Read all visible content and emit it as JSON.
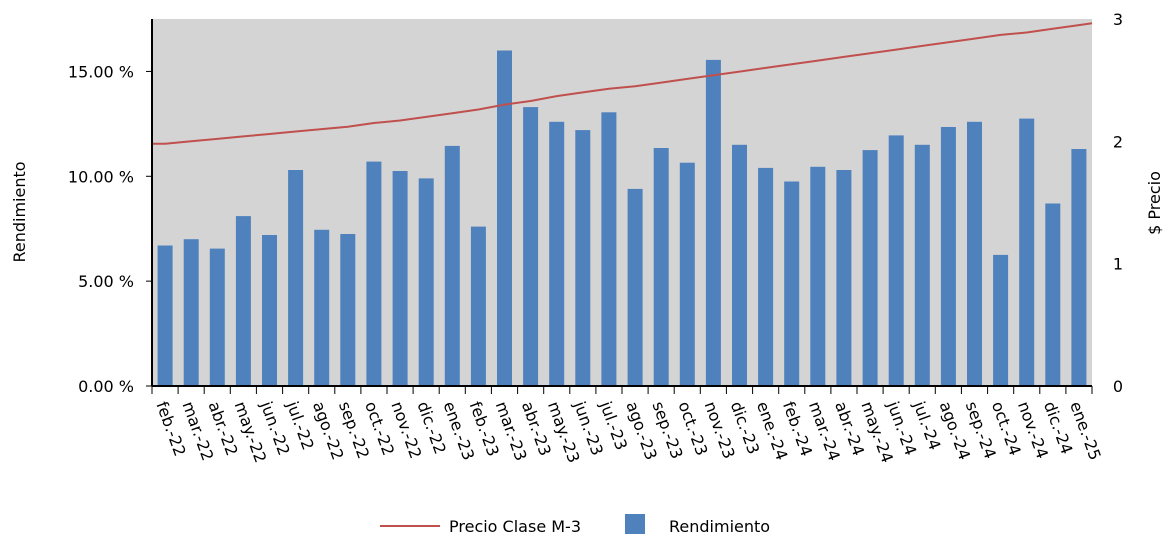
{
  "chart_data": {
    "type": "bar",
    "categories": [
      "feb.-22",
      "mar.-22",
      "abr.-22",
      "may.-22",
      "jun.-22",
      "jul.-22",
      "ago.-22",
      "sep.-22",
      "oct.-22",
      "nov.-22",
      "dic.-22",
      "ene.-23",
      "feb.-23",
      "mar.-23",
      "abr.-23",
      "may.-23",
      "jun.-23",
      "jul.-23",
      "ago.-23",
      "sep.-23",
      "oct.-23",
      "nov.-23",
      "dic.-23",
      "ene.-24",
      "feb.-24",
      "mar.-24",
      "abr.-24",
      "may.-24",
      "jun.-24",
      "jul.-24",
      "ago.-24",
      "sep.-24",
      "oct.-24",
      "nov.-24",
      "dic.-24",
      "ene.-25"
    ],
    "series": [
      {
        "name": "Rendimiento",
        "type": "bar",
        "axis": "left",
        "color": "#4f81bd",
        "values": [
          6.7,
          7.0,
          6.55,
          8.1,
          7.2,
          10.3,
          7.45,
          7.25,
          10.7,
          10.25,
          9.9,
          11.45,
          7.6,
          16.0,
          13.3,
          12.6,
          12.2,
          13.05,
          9.4,
          11.35,
          10.65,
          15.55,
          11.5,
          10.4,
          9.75,
          10.45,
          10.3,
          11.25,
          11.95,
          11.5,
          12.35,
          12.6,
          6.25,
          12.75,
          8.7,
          11.3
        ]
      },
      {
        "name": "Precio Clase M-3",
        "type": "line",
        "axis": "right",
        "color": "#c0504d",
        "values": [
          1.98,
          2.0,
          2.02,
          2.04,
          2.06,
          2.08,
          2.1,
          2.12,
          2.15,
          2.17,
          2.2,
          2.23,
          2.26,
          2.3,
          2.33,
          2.37,
          2.4,
          2.43,
          2.45,
          2.48,
          2.51,
          2.54,
          2.57,
          2.6,
          2.63,
          2.66,
          2.69,
          2.72,
          2.75,
          2.78,
          2.81,
          2.84,
          2.87,
          2.89,
          2.92,
          2.95
        ]
      }
    ],
    "ylabel": "Rendimiento",
    "y2label": "$ Precio",
    "ylim": [
      0,
      17.5
    ],
    "y2lim": [
      0,
      3
    ],
    "yticks": [
      "0.00 %",
      "5.00 %",
      "10.00 %",
      "15.00 %"
    ],
    "ytick_values": [
      0,
      5,
      10,
      15
    ],
    "y2ticks": [
      "0",
      "1",
      "2",
      "3"
    ],
    "y2tick_values": [
      0,
      1,
      2,
      3
    ],
    "plot_background": "#d4d4d4",
    "grid": false,
    "legend_position": "bottom",
    "legend": [
      {
        "label": "Precio Clase M-3",
        "kind": "line",
        "color": "#c0504d"
      },
      {
        "label": "Rendimiento",
        "kind": "box",
        "color": "#4f81bd"
      }
    ]
  }
}
